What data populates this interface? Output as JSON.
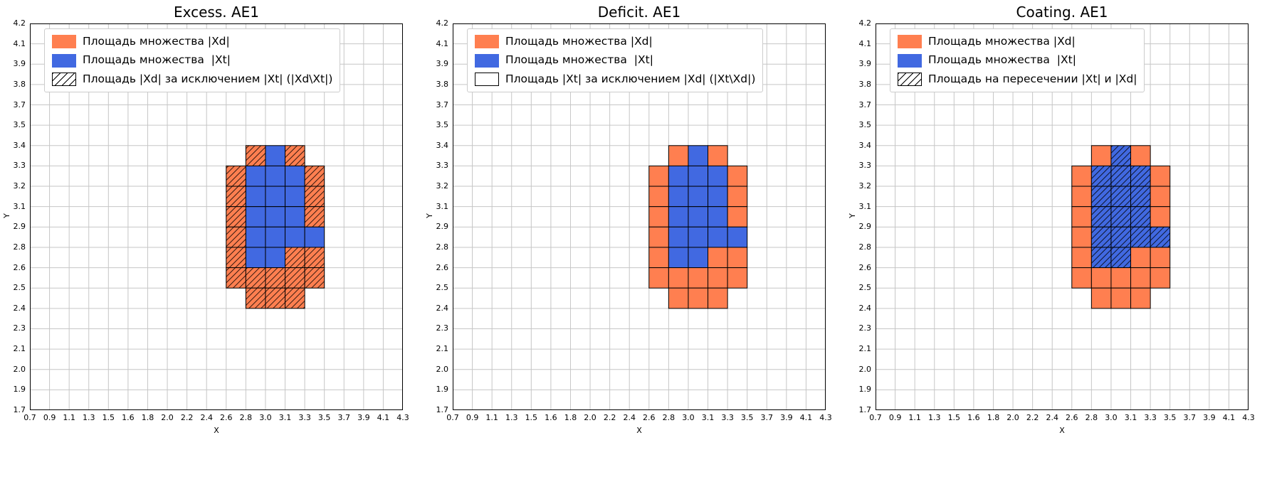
{
  "figure": {
    "background": "#ffffff",
    "grid_color": "#c6c6c6",
    "axes_edge_color": "#000000",
    "cell_edge_color": "#000000",
    "set_colors": {
      "xd": "#FF7F50",
      "xt": "#4169E1"
    }
  },
  "axes": {
    "xlabel": "X",
    "ylabel": "Y",
    "grid": true,
    "x_range": [
      0.7,
      4.3
    ],
    "y_range": [
      1.7,
      4.2
    ],
    "x_ticks": [
      "0.7",
      "0.9",
      "1.1",
      "1.3",
      "1.5",
      "1.6",
      "1.8",
      "2.0",
      "2.2",
      "2.4",
      "2.6",
      "2.8",
      "3.0",
      "3.1",
      "3.3",
      "3.5",
      "3.7",
      "3.9",
      "4.1",
      "4.3"
    ],
    "y_ticks": [
      "1.7",
      "1.9",
      "2.0",
      "2.1",
      "2.3",
      "2.4",
      "2.5",
      "2.6",
      "2.8",
      "2.9",
      "3.1",
      "3.2",
      "3.3",
      "3.4",
      "3.5",
      "3.7",
      "3.8",
      "3.9",
      "4.1",
      "4.2"
    ]
  },
  "cell_format": "[x_tick_index_of_left_edge, y_tick_index_of_bottom_edge, set(xd=orange|xt=blue), hatched(0|1)]",
  "chart_data": [
    {
      "type": "heatmap",
      "title": "Excess. AE1",
      "legend_position": "upper left",
      "legend": [
        "Площадь множества |Xd|",
        "Площадь множества  |Xt|",
        "Площадь |Xd| за исключением |Xt| (|Xd\\Xt|)"
      ],
      "third_swatch": "hatched",
      "cells": [
        [
          11,
          12,
          "xd",
          1
        ],
        [
          12,
          12,
          "xt",
          0
        ],
        [
          13,
          12,
          "xd",
          1
        ],
        [
          10,
          11,
          "xd",
          1
        ],
        [
          11,
          11,
          "xt",
          0
        ],
        [
          12,
          11,
          "xt",
          0
        ],
        [
          13,
          11,
          "xt",
          0
        ],
        [
          14,
          11,
          "xd",
          1
        ],
        [
          10,
          10,
          "xd",
          1
        ],
        [
          11,
          10,
          "xt",
          0
        ],
        [
          12,
          10,
          "xt",
          0
        ],
        [
          13,
          10,
          "xt",
          0
        ],
        [
          14,
          10,
          "xd",
          1
        ],
        [
          10,
          9,
          "xd",
          1
        ],
        [
          11,
          9,
          "xt",
          0
        ],
        [
          12,
          9,
          "xt",
          0
        ],
        [
          13,
          9,
          "xt",
          0
        ],
        [
          14,
          9,
          "xd",
          1
        ],
        [
          10,
          8,
          "xd",
          1
        ],
        [
          11,
          8,
          "xt",
          0
        ],
        [
          12,
          8,
          "xt",
          0
        ],
        [
          13,
          8,
          "xt",
          0
        ],
        [
          14,
          8,
          "xt",
          0
        ],
        [
          10,
          7,
          "xd",
          1
        ],
        [
          11,
          7,
          "xt",
          0
        ],
        [
          12,
          7,
          "xt",
          0
        ],
        [
          13,
          7,
          "xd",
          1
        ],
        [
          14,
          7,
          "xd",
          1
        ],
        [
          10,
          6,
          "xd",
          1
        ],
        [
          11,
          6,
          "xd",
          1
        ],
        [
          12,
          6,
          "xd",
          1
        ],
        [
          13,
          6,
          "xd",
          1
        ],
        [
          14,
          6,
          "xd",
          1
        ],
        [
          11,
          5,
          "xd",
          1
        ],
        [
          12,
          5,
          "xd",
          1
        ],
        [
          13,
          5,
          "xd",
          1
        ]
      ]
    },
    {
      "type": "heatmap",
      "title": "Deficit. AE1",
      "legend_position": "upper left",
      "legend": [
        "Площадь множества |Xd|",
        "Площадь множества  |Xt|",
        "Площадь |Xt| за исключением |Xd| (|Xt\\Xd|)"
      ],
      "third_swatch": "empty",
      "cells": [
        [
          11,
          12,
          "xd",
          0
        ],
        [
          12,
          12,
          "xt",
          0
        ],
        [
          13,
          12,
          "xd",
          0
        ],
        [
          10,
          11,
          "xd",
          0
        ],
        [
          11,
          11,
          "xt",
          0
        ],
        [
          12,
          11,
          "xt",
          0
        ],
        [
          13,
          11,
          "xt",
          0
        ],
        [
          14,
          11,
          "xd",
          0
        ],
        [
          10,
          10,
          "xd",
          0
        ],
        [
          11,
          10,
          "xt",
          0
        ],
        [
          12,
          10,
          "xt",
          0
        ],
        [
          13,
          10,
          "xt",
          0
        ],
        [
          14,
          10,
          "xd",
          0
        ],
        [
          10,
          9,
          "xd",
          0
        ],
        [
          11,
          9,
          "xt",
          0
        ],
        [
          12,
          9,
          "xt",
          0
        ],
        [
          13,
          9,
          "xt",
          0
        ],
        [
          14,
          9,
          "xd",
          0
        ],
        [
          10,
          8,
          "xd",
          0
        ],
        [
          11,
          8,
          "xt",
          0
        ],
        [
          12,
          8,
          "xt",
          0
        ],
        [
          13,
          8,
          "xt",
          0
        ],
        [
          14,
          8,
          "xt",
          0
        ],
        [
          10,
          7,
          "xd",
          0
        ],
        [
          11,
          7,
          "xt",
          0
        ],
        [
          12,
          7,
          "xt",
          0
        ],
        [
          13,
          7,
          "xd",
          0
        ],
        [
          14,
          7,
          "xd",
          0
        ],
        [
          10,
          6,
          "xd",
          0
        ],
        [
          11,
          6,
          "xd",
          0
        ],
        [
          12,
          6,
          "xd",
          0
        ],
        [
          13,
          6,
          "xd",
          0
        ],
        [
          14,
          6,
          "xd",
          0
        ],
        [
          11,
          5,
          "xd",
          0
        ],
        [
          12,
          5,
          "xd",
          0
        ],
        [
          13,
          5,
          "xd",
          0
        ]
      ]
    },
    {
      "type": "heatmap",
      "title": "Coating. AE1",
      "legend_position": "upper left",
      "legend": [
        "Площадь множества |Xd|",
        "Площадь множества  |Xt|",
        "Площадь на пересечении |Xt| и |Xd|"
      ],
      "third_swatch": "hatched",
      "cells": [
        [
          11,
          12,
          "xd",
          0
        ],
        [
          12,
          12,
          "xt",
          1
        ],
        [
          13,
          12,
          "xd",
          0
        ],
        [
          10,
          11,
          "xd",
          0
        ],
        [
          11,
          11,
          "xt",
          1
        ],
        [
          12,
          11,
          "xt",
          1
        ],
        [
          13,
          11,
          "xt",
          1
        ],
        [
          14,
          11,
          "xd",
          0
        ],
        [
          10,
          10,
          "xd",
          0
        ],
        [
          11,
          10,
          "xt",
          1
        ],
        [
          12,
          10,
          "xt",
          1
        ],
        [
          13,
          10,
          "xt",
          1
        ],
        [
          14,
          10,
          "xd",
          0
        ],
        [
          10,
          9,
          "xd",
          0
        ],
        [
          11,
          9,
          "xt",
          1
        ],
        [
          12,
          9,
          "xt",
          1
        ],
        [
          13,
          9,
          "xt",
          1
        ],
        [
          14,
          9,
          "xd",
          0
        ],
        [
          10,
          8,
          "xd",
          0
        ],
        [
          11,
          8,
          "xt",
          1
        ],
        [
          12,
          8,
          "xt",
          1
        ],
        [
          13,
          8,
          "xt",
          1
        ],
        [
          14,
          8,
          "xt",
          1
        ],
        [
          10,
          7,
          "xd",
          0
        ],
        [
          11,
          7,
          "xt",
          1
        ],
        [
          12,
          7,
          "xt",
          1
        ],
        [
          13,
          7,
          "xd",
          0
        ],
        [
          14,
          7,
          "xd",
          0
        ],
        [
          10,
          6,
          "xd",
          0
        ],
        [
          11,
          6,
          "xd",
          0
        ],
        [
          12,
          6,
          "xd",
          0
        ],
        [
          13,
          6,
          "xd",
          0
        ],
        [
          14,
          6,
          "xd",
          0
        ],
        [
          11,
          5,
          "xd",
          0
        ],
        [
          12,
          5,
          "xd",
          0
        ],
        [
          13,
          5,
          "xd",
          0
        ]
      ]
    }
  ]
}
